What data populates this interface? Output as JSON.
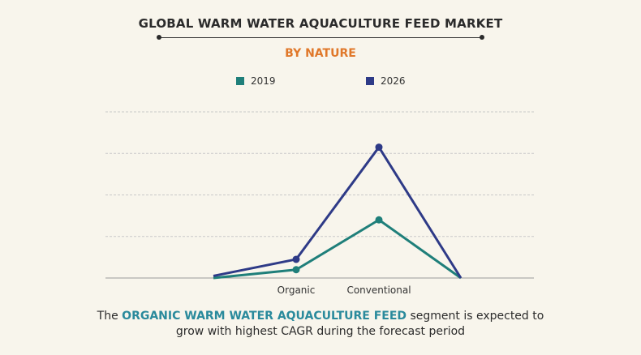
{
  "title": "GLOBAL WARM WATER AQUACULTURE FEED MARKET",
  "subtitle": "BY NATURE",
  "caption": {
    "prefix": "The ",
    "highlight": "ORGANIC WARM WATER AQUACULTURE FEED",
    "suffix": " segment is expected to",
    "line2": "grow with highest CAGR during the forecast period"
  },
  "colors": {
    "series_2019": "#1f7f7a",
    "series_2026": "#2e3a87",
    "title": "#2b2b2b",
    "subtitle": "#e0782a",
    "highlight": "#2a8a9c",
    "grid": "#c9c9c9"
  },
  "chart_data": {
    "type": "line",
    "title": "GLOBAL WARM WATER AQUACULTURE FEED MARKET",
    "subtitle": "BY NATURE",
    "categories": [
      "",
      "Organic",
      "Conventional",
      ""
    ],
    "ylim": [
      0,
      4
    ],
    "grid": true,
    "legend": "top-center",
    "series": [
      {
        "name": "2019",
        "values": [
          0,
          0.2,
          1.4,
          0
        ],
        "markers": [
          false,
          true,
          true,
          false
        ]
      },
      {
        "name": "2026",
        "values": [
          0.05,
          0.45,
          3.15,
          0
        ],
        "markers": [
          false,
          true,
          true,
          false
        ]
      }
    ]
  }
}
